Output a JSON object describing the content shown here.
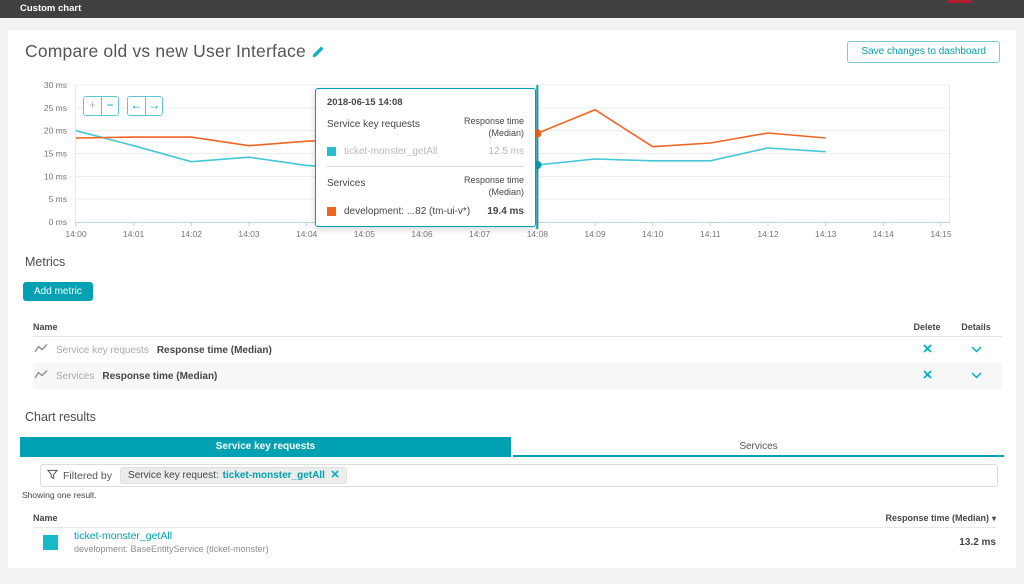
{
  "colors": {
    "teal": "#00a1b2",
    "teal_line": "#45c7d5",
    "orange": "#ef6524",
    "swatch_teal": "#17b8c7"
  },
  "topbar": {
    "title": "Custom chart"
  },
  "header": {
    "title": "Compare old vs new User Interface",
    "save_button": "Save changes to dashboard"
  },
  "chart_controls": {
    "zoom_in": "+",
    "zoom_out": "−",
    "pan_left": "←",
    "pan_right": "→"
  },
  "chart_data": {
    "type": "line",
    "unit": "ms",
    "x_ticks": [
      "14:00",
      "14:01",
      "14:02",
      "14:03",
      "14:04",
      "14:05",
      "14:06",
      "14:07",
      "14:08",
      "14:09",
      "14:10",
      "14:11",
      "14:12",
      "14:13",
      "14:14",
      "14:15"
    ],
    "y_ticks": [
      0,
      5,
      10,
      15,
      20,
      25,
      30
    ],
    "y_tick_suffix": " ms",
    "ylim": [
      0,
      30
    ],
    "grid": "horizontal",
    "series": [
      {
        "name": "ticket-monster_getAll",
        "group": "Service key requests",
        "color": "#45c7d5",
        "values": [
          20,
          16.7,
          13.2,
          14.2,
          12.4,
          11.6,
          10.6,
          10.0,
          12.5,
          13.8,
          13.4,
          13.4,
          16.2,
          15.4
        ]
      },
      {
        "name": "development: ...82 (tm-ui-v*)",
        "group": "Services",
        "color": "#ef6524",
        "values": [
          18.4,
          18.6,
          18.6,
          16.7,
          17.7,
          18.1,
          18.6,
          19.0,
          19.4,
          24.6,
          16.5,
          17.3,
          19.5,
          18.4
        ]
      }
    ],
    "highlight": {
      "x_index": 8,
      "x_label": "14:08",
      "line_color": "#00a1b2",
      "points": [
        {
          "value": 12.5,
          "color": "#00a1b2"
        },
        {
          "value": 19.4,
          "color": "#ef6524"
        }
      ]
    }
  },
  "tooltip": {
    "timestamp": "2018-06-15 14:08",
    "sections": [
      {
        "title": "Service key requests",
        "value_header": "Response time (Median)",
        "row": {
          "label": "ticket-monster_getAll",
          "value": "12.5 ms",
          "swatch": "#2bbccb"
        }
      },
      {
        "title": "Services",
        "value_header": "Response time (Median)",
        "row": {
          "label": "development: ...82 (tm-ui-v*)",
          "value": "19.4 ms",
          "swatch": "#ef6524"
        }
      }
    ]
  },
  "metrics": {
    "heading": "Metrics",
    "add_button": "Add metric",
    "name_header": "Name",
    "delete_header": "Delete",
    "details_header": "Details",
    "rows": [
      {
        "category": "Service key requests",
        "metric": "Response time (Median)"
      },
      {
        "category": "Services",
        "metric": "Response time (Median)"
      }
    ]
  },
  "results": {
    "heading": "Chart results",
    "tabs": [
      {
        "label": "Service key requests"
      },
      {
        "label": "Services"
      }
    ],
    "active_tab": 0,
    "filtered_by": "Filtered by",
    "chip_key": "Service key request:",
    "chip_value": "ticket-monster_getAll",
    "summary": "Showing one result.",
    "name_header": "Name",
    "value_header": "Response time (Median)",
    "sort_indicator": "▾",
    "rows": [
      {
        "name": "ticket-monster_getAll",
        "subtitle": "development: BaseEntityService (ticket-monster)",
        "value": "13.2 ms",
        "swatch": "#17b8c7"
      }
    ]
  }
}
